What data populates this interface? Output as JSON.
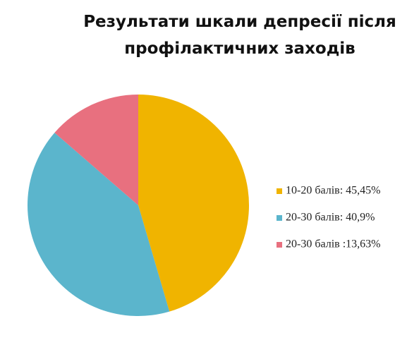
{
  "chart_data": {
    "type": "pie",
    "title": "Результати шкали депресії після профілактичних заходів",
    "categories": [
      "10-20 балів: 45,45%",
      "20-30 балів: 40,9%",
      "20-30 балів :13,63%"
    ],
    "values": [
      45.45,
      40.9,
      13.63
    ],
    "colors": [
      "#f0b400",
      "#5bb5cc",
      "#e8707f"
    ],
    "legend": "right"
  }
}
